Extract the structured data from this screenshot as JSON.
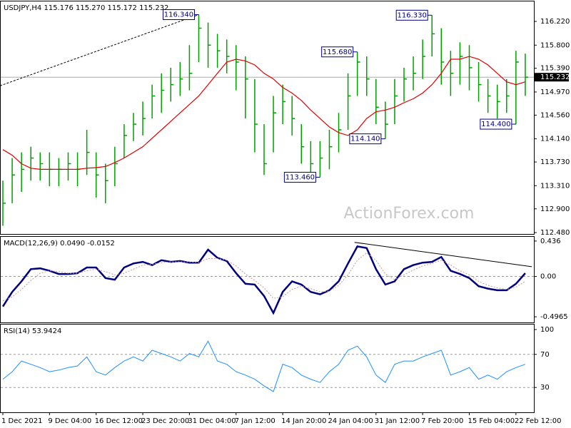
{
  "watermark": "ActionForex.com",
  "chart_data": [
    {
      "type": "ohlc",
      "title": "USDJPY,H4  115.176 115.270 115.172 115.232",
      "color": "#00a000",
      "high": [
        113.4,
        113.8,
        113.9,
        114.0,
        113.9,
        113.9,
        113.8,
        113.9,
        113.9,
        114.3,
        113.9,
        113.7,
        114.0,
        114.4,
        114.6,
        114.8,
        115.1,
        115.3,
        115.4,
        115.5,
        115.8,
        116.34,
        116.2,
        116.0,
        115.9,
        115.8,
        115.6,
        115.2,
        114.4,
        114.9,
        115.1,
        114.9,
        114.4,
        114.1,
        114.1,
        114.3,
        114.6,
        115.3,
        115.68,
        115.6,
        115.2,
        114.8,
        115.2,
        115.4,
        115.6,
        115.9,
        116.33,
        116.1,
        115.7,
        115.85,
        115.8,
        115.5,
        115.2,
        115.1,
        115.2,
        115.7,
        115.65
      ],
      "low": [
        112.6,
        113.0,
        113.2,
        113.4,
        113.4,
        113.3,
        113.3,
        113.4,
        113.3,
        113.5,
        113.1,
        113.0,
        113.3,
        113.8,
        114.1,
        114.2,
        114.5,
        114.6,
        114.8,
        114.9,
        115.0,
        115.5,
        115.4,
        115.4,
        115.3,
        115.0,
        114.5,
        113.9,
        113.5,
        113.9,
        114.4,
        114.2,
        113.7,
        113.5,
        113.46,
        113.6,
        113.9,
        114.3,
        114.9,
        114.9,
        114.4,
        114.14,
        114.4,
        114.8,
        115.0,
        115.2,
        115.6,
        115.1,
        114.9,
        115.1,
        115.0,
        114.8,
        114.6,
        114.5,
        114.6,
        114.4,
        114.9
      ],
      "close": [
        113.0,
        113.5,
        113.6,
        113.8,
        113.7,
        113.6,
        113.6,
        113.7,
        113.6,
        113.9,
        113.5,
        113.4,
        113.7,
        114.2,
        114.4,
        114.5,
        114.9,
        115.0,
        115.1,
        115.2,
        115.3,
        116.1,
        115.8,
        115.7,
        115.6,
        115.5,
        115.2,
        114.4,
        113.7,
        114.6,
        114.8,
        114.5,
        114.0,
        113.7,
        113.8,
        114.0,
        114.3,
        114.9,
        115.5,
        115.2,
        114.7,
        114.4,
        114.9,
        115.2,
        115.3,
        115.6,
        116.0,
        115.5,
        115.3,
        115.6,
        115.4,
        115.1,
        114.9,
        114.8,
        114.9,
        115.5,
        115.232
      ],
      "overlays": [
        {
          "color": "#e00000",
          "values": [
            113.95,
            113.85,
            113.7,
            113.62,
            113.6,
            113.6,
            113.6,
            113.6,
            113.6,
            113.62,
            113.63,
            113.65,
            113.72,
            113.8,
            113.9,
            114.0,
            114.15,
            114.3,
            114.45,
            114.6,
            114.75,
            114.9,
            115.1,
            115.3,
            115.5,
            115.55,
            115.52,
            115.45,
            115.3,
            115.2,
            115.05,
            114.95,
            114.82,
            114.65,
            114.5,
            114.35,
            114.25,
            114.2,
            114.3,
            114.5,
            114.62,
            114.65,
            114.7,
            114.78,
            114.85,
            114.95,
            115.1,
            115.3,
            115.55,
            115.55,
            115.6,
            115.55,
            115.45,
            115.3,
            115.15,
            115.1,
            115.15
          ]
        }
      ],
      "ylim": [
        112.455,
        116.574
      ],
      "yticks": [
        {
          "value": 116.22,
          "label": "116.220"
        },
        {
          "value": 115.8,
          "label": "115.800"
        },
        {
          "value": 115.39,
          "label": "115.390"
        },
        {
          "value": 114.97,
          "label": "114.970"
        },
        {
          "value": 114.56,
          "label": "114.560"
        },
        {
          "value": 114.14,
          "label": "114.140"
        },
        {
          "value": 113.73,
          "label": "113.730"
        },
        {
          "value": 113.31,
          "label": "113.310"
        },
        {
          "value": 112.9,
          "label": "112.900"
        },
        {
          "value": 112.48,
          "label": "112.480"
        }
      ],
      "last_price": 115.232,
      "annotations": [
        {
          "label": "116.340",
          "value": 116.34,
          "index": 21
        },
        {
          "label": "115.680",
          "value": 115.68,
          "index": 38
        },
        {
          "label": "116.330",
          "value": 116.33,
          "index": 46
        },
        {
          "label": "114.140",
          "value": 114.14,
          "index": 41
        },
        {
          "label": "113.460",
          "value": 113.46,
          "index": 34
        },
        {
          "label": "114.400",
          "value": 114.4,
          "index": 55
        }
      ],
      "trendlines": [
        {
          "index": [
            0,
            21
          ],
          "values": [
            115.08,
            116.34
          ],
          "dashed": true
        }
      ]
    },
    {
      "type": "line",
      "title": "MACD(12,26,9) 0.0490 -0.0152",
      "series": [
        {
          "color": "#00007f",
          "width": 2.5,
          "values": [
            -0.37,
            -0.19,
            -0.06,
            0.09,
            0.1,
            0.07,
            0.03,
            0.03,
            0.04,
            0.11,
            0.11,
            -0.02,
            -0.04,
            0.11,
            0.16,
            0.18,
            0.14,
            0.2,
            0.18,
            0.19,
            0.17,
            0.17,
            0.33,
            0.23,
            0.19,
            0.04,
            -0.09,
            -0.1,
            -0.24,
            -0.45,
            -0.19,
            -0.06,
            -0.1,
            -0.19,
            -0.22,
            -0.17,
            -0.06,
            0.16,
            0.37,
            0.35,
            0.09,
            -0.1,
            -0.06,
            0.09,
            0.14,
            0.17,
            0.18,
            0.24,
            0.07,
            0.03,
            -0.02,
            -0.12,
            -0.15,
            -0.17,
            -0.17,
            -0.09,
            0.04
          ]
        },
        {
          "color": "#c89898",
          "width": 1,
          "dashed": true,
          "values": [
            -0.3,
            -0.25,
            -0.16,
            -0.05,
            0.04,
            0.07,
            0.06,
            0.04,
            0.04,
            0.07,
            0.09,
            0.06,
            0.02,
            0.04,
            0.09,
            0.14,
            0.15,
            0.17,
            0.18,
            0.18,
            0.18,
            0.17,
            0.22,
            0.22,
            0.2,
            0.13,
            0.03,
            -0.05,
            -0.14,
            -0.27,
            -0.25,
            -0.16,
            -0.12,
            -0.15,
            -0.19,
            -0.18,
            -0.11,
            0.02,
            0.2,
            0.29,
            0.2,
            0.03,
            -0.04,
            0.02,
            0.08,
            0.13,
            0.16,
            0.2,
            0.14,
            0.07,
            0.02,
            -0.06,
            -0.11,
            -0.14,
            -0.16,
            -0.13,
            -0.06
          ]
        }
      ],
      "ylim": [
        -0.566,
        0.488
      ],
      "yticks": [
        0.436,
        {
          "value": 0,
          "label": "0.00"
        },
        -0.4965
      ],
      "levels": [
        0
      ],
      "trendlines": [
        {
          "index": [
            38,
            56.7
          ],
          "values": [
            0.42,
            0.12
          ],
          "dashed": false
        }
      ]
    },
    {
      "type": "line",
      "title": "RSI(14) 53.9424",
      "categories": [
        "1 Dec 2021",
        null,
        null,
        null,
        null,
        "9 Dec 04:00",
        null,
        null,
        null,
        null,
        "16 Dec 12:00",
        null,
        null,
        null,
        null,
        "23 Dec 20:00",
        null,
        null,
        null,
        null,
        "31 Dec 04:00",
        null,
        null,
        null,
        null,
        "7 Jan 12:00",
        null,
        null,
        null,
        null,
        "14 Jan 20:00",
        null,
        null,
        null,
        null,
        "24 Jan 04:00",
        null,
        null,
        null,
        null,
        "31 Jan 12:00",
        null,
        null,
        null,
        null,
        "7 Feb 20:00",
        null,
        null,
        null,
        null,
        "15 Feb 04:00",
        null,
        null,
        null,
        null,
        "22 Feb 12:00",
        null
      ],
      "series": [
        {
          "color": "#1e90ff",
          "width": 1,
          "values": [
            40,
            49,
            62,
            58,
            54,
            49,
            51,
            54,
            56,
            67,
            49,
            45,
            54,
            62,
            67,
            62,
            75,
            71,
            67,
            62,
            71,
            67,
            86,
            62,
            58,
            49,
            45,
            40,
            32,
            25,
            58,
            54,
            45,
            40,
            36,
            49,
            58,
            75,
            80,
            67,
            45,
            36,
            58,
            62,
            62,
            67,
            71,
            75,
            45,
            49,
            54,
            40,
            45,
            40,
            49,
            54,
            58
          ]
        }
      ],
      "ylim": [
        0,
        106
      ],
      "yticks": [
        100,
        70,
        30
      ],
      "levels": [
        70,
        30
      ]
    }
  ]
}
